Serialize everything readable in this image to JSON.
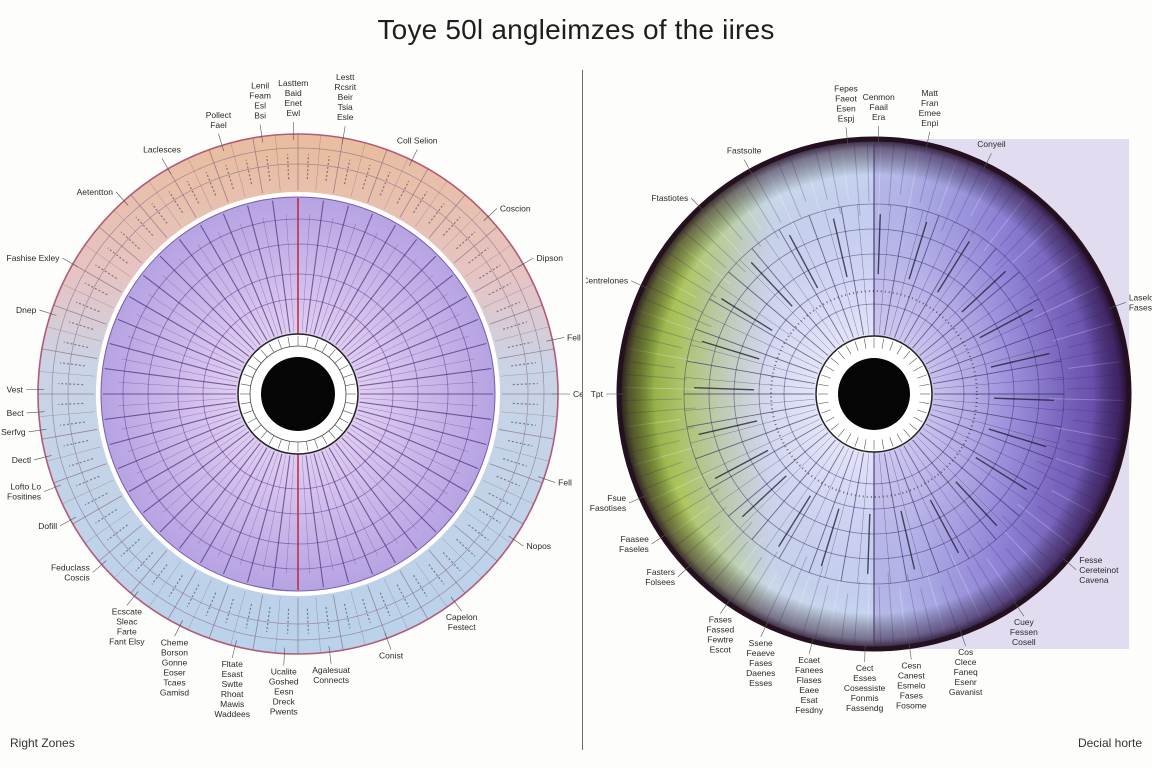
{
  "title": "Toye 50l angleimzes of the iires",
  "left_chart": {
    "caption": "Right Zones",
    "labels": [
      {
        "text": "Lenil\nFeam\nEsl\nBsi",
        "angle": -8
      },
      {
        "text": "Lasttem\nBaid\nEnet\nEwl",
        "angle": -1
      },
      {
        "text": "Lestt\nRcsrit\nBeir\nTsia\nEsle",
        "angle": 10
      },
      {
        "text": "Coll Selion",
        "angle": 26
      },
      {
        "text": "Coscion",
        "angle": 47
      },
      {
        "text": "Dipson",
        "angle": 60
      },
      {
        "text": "Fell",
        "angle": 78
      },
      {
        "text": "Cel",
        "angle": 90
      },
      {
        "text": "Fell",
        "angle": 109
      },
      {
        "text": "Nopos",
        "angle": 124
      },
      {
        "text": "Capelon\nFestect",
        "angle": 143
      },
      {
        "text": "Conist",
        "angle": 160
      },
      {
        "text": "Agalesuat\nConnects",
        "angle": 173
      },
      {
        "text": "Ucalite\nGoshed\nEesn\nDreck\nPwents",
        "angle": 183
      },
      {
        "text": "Fltate\nEsast\nSwtte\nRhoat\nMawis\nWaddees",
        "angle": 194
      },
      {
        "text": "Cheme\nBorson\nGonne\nEoser\nTcaes\nGamisd",
        "angle": 207
      },
      {
        "text": "Ecscate\nSleac\nFarte\nFant Elsy",
        "angle": 219
      },
      {
        "text": "Feduclass\nCoscis",
        "angle": 229
      },
      {
        "text": "Dofill",
        "angle": 241
      },
      {
        "text": "Lofto Lo\nFositines",
        "angle": 249
      },
      {
        "text": "Dectl",
        "angle": 256
      },
      {
        "text": "Serfvg",
        "angle": 262
      },
      {
        "text": "Bect",
        "angle": 266
      },
      {
        "text": "Vest",
        "angle": 271
      },
      {
        "text": "Dnep",
        "angle": 288
      },
      {
        "text": "Fashise Exley",
        "angle": 300
      },
      {
        "text": "Aetentton",
        "angle": 318
      },
      {
        "text": "Laclesces",
        "angle": 330
      },
      {
        "text": "Pollect\nFael",
        "angle": 343
      }
    ]
  },
  "right_chart": {
    "caption": "Decial horte",
    "labels": [
      {
        "text": "Fepes\nFaeot\nEsen\nEspj",
        "angle": -6
      },
      {
        "text": "Cenmon\nFaail\nEra",
        "angle": 1
      },
      {
        "text": "Matt\nFran\nEmee\nEnpi",
        "angle": 12
      },
      {
        "text": "Conyeil",
        "angle": 26
      },
      {
        "text": "Laseloen\nFases",
        "angle": 70
      },
      {
        "text": "Fesse\nCereteinot\nCavena",
        "angle": 131
      },
      {
        "text": "Cuey\nFessen\nCosell",
        "angle": 146
      },
      {
        "text": "Cos\nClece\nFaneq\nEsenr\nGavanist",
        "angle": 160
      },
      {
        "text": "Cesn\nCanest\nEsmelo\nFases\nFosome",
        "angle": 172
      },
      {
        "text": "Cect\nEsses\nCosessiste\nFonmis\nFassendg",
        "angle": 182
      },
      {
        "text": "Ecaet\nFanees\nFlases\nEaee\nEsat\nFesdny",
        "angle": 194
      },
      {
        "text": "Ssene\nFeaeve\nFases\nDaenes\nEsses",
        "angle": 205
      },
      {
        "text": "Fases\nFassed\nFewtre\nEscot",
        "angle": 215
      },
      {
        "text": "Fasters\nFolsees",
        "angle": 227
      },
      {
        "text": "Faasee\nFaseles",
        "angle": 236
      },
      {
        "text": "Fsue\nFasotises",
        "angle": 246
      },
      {
        "text": "Tpt",
        "angle": 270
      },
      {
        "text": "Centrelones",
        "angle": 295
      },
      {
        "text": "Ftastiotes",
        "angle": 317
      },
      {
        "text": "Fastsolte",
        "angle": 331
      }
    ]
  }
}
